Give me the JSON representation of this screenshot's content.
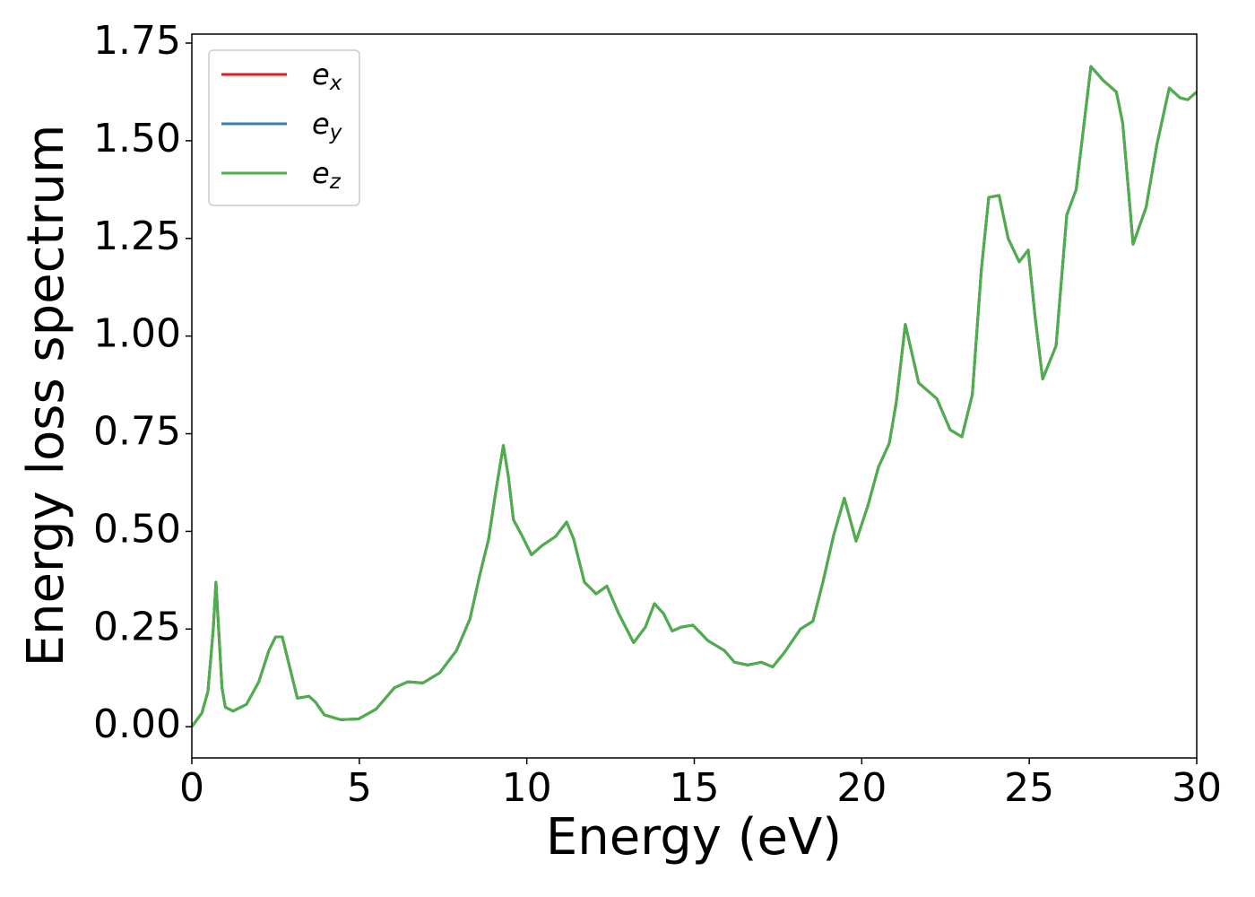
{
  "chart_data": {
    "type": "line",
    "xlabel": "Energy (eV)",
    "ylabel": "Energy loss spectrum",
    "x": [
      0,
      0.3,
      0.48,
      0.64,
      0.72,
      0.8,
      0.9,
      1.0,
      1.23,
      1.63,
      2.0,
      2.3,
      2.5,
      2.7,
      2.9,
      3.15,
      3.5,
      3.7,
      3.96,
      4.44,
      4.98,
      5.5,
      6.05,
      6.45,
      6.9,
      7.4,
      7.9,
      8.3,
      8.6,
      8.86,
      9.07,
      9.3,
      9.45,
      9.6,
      9.85,
      10.14,
      10.46,
      10.86,
      11.19,
      11.4,
      11.72,
      12.07,
      12.39,
      12.74,
      13.19,
      13.54,
      13.81,
      14.08,
      14.34,
      14.61,
      14.96,
      15.41,
      15.9,
      16.2,
      16.6,
      17.0,
      17.34,
      17.69,
      18.17,
      18.54,
      18.84,
      19.16,
      19.48,
      19.83,
      20.18,
      20.5,
      20.82,
      21.03,
      21.3,
      21.7,
      22.24,
      22.64,
      22.99,
      23.3,
      23.57,
      23.79,
      24.1,
      24.37,
      24.7,
      24.97,
      25.18,
      25.4,
      25.8,
      26.12,
      26.4,
      26.84,
      27.2,
      27.6,
      27.79,
      28.1,
      28.49,
      28.81,
      29.18,
      29.5,
      29.73,
      30.0
    ],
    "series": [
      {
        "name": "e_x",
        "color": "#e41a1c",
        "values": [
          0,
          0.035,
          0.09,
          0.25,
          0.37,
          0.25,
          0.1,
          0.05,
          0.04,
          0.057,
          0.115,
          0.195,
          0.23,
          0.23,
          0.16,
          0.073,
          0.078,
          0.062,
          0.03,
          0.018,
          0.02,
          0.045,
          0.1,
          0.115,
          0.112,
          0.138,
          0.195,
          0.275,
          0.39,
          0.48,
          0.6,
          0.72,
          0.64,
          0.53,
          0.49,
          0.44,
          0.464,
          0.487,
          0.524,
          0.48,
          0.37,
          0.34,
          0.36,
          0.29,
          0.215,
          0.255,
          0.315,
          0.29,
          0.245,
          0.255,
          0.26,
          0.22,
          0.195,
          0.165,
          0.158,
          0.165,
          0.153,
          0.19,
          0.25,
          0.27,
          0.37,
          0.49,
          0.585,
          0.475,
          0.565,
          0.665,
          0.725,
          0.83,
          1.03,
          0.88,
          0.84,
          0.76,
          0.742,
          0.85,
          1.17,
          1.355,
          1.36,
          1.25,
          1.19,
          1.22,
          1.045,
          0.89,
          0.975,
          1.31,
          1.375,
          1.69,
          1.655,
          1.625,
          1.545,
          1.235,
          1.33,
          1.49,
          1.635,
          1.61,
          1.605,
          1.625
        ]
      },
      {
        "name": "e_y",
        "color": "#377eb8",
        "values": [
          0,
          0.035,
          0.09,
          0.25,
          0.37,
          0.25,
          0.1,
          0.05,
          0.04,
          0.057,
          0.115,
          0.195,
          0.23,
          0.23,
          0.16,
          0.073,
          0.078,
          0.062,
          0.03,
          0.018,
          0.02,
          0.045,
          0.1,
          0.115,
          0.112,
          0.138,
          0.195,
          0.275,
          0.39,
          0.48,
          0.6,
          0.72,
          0.64,
          0.53,
          0.49,
          0.44,
          0.464,
          0.487,
          0.524,
          0.48,
          0.37,
          0.34,
          0.36,
          0.29,
          0.215,
          0.255,
          0.315,
          0.29,
          0.245,
          0.255,
          0.26,
          0.22,
          0.195,
          0.165,
          0.158,
          0.165,
          0.153,
          0.19,
          0.25,
          0.27,
          0.37,
          0.49,
          0.585,
          0.475,
          0.565,
          0.665,
          0.725,
          0.83,
          1.03,
          0.88,
          0.84,
          0.76,
          0.742,
          0.85,
          1.17,
          1.355,
          1.36,
          1.25,
          1.19,
          1.22,
          1.045,
          0.89,
          0.975,
          1.31,
          1.375,
          1.69,
          1.655,
          1.625,
          1.545,
          1.235,
          1.33,
          1.49,
          1.635,
          1.61,
          1.605,
          1.625
        ]
      },
      {
        "name": "e_z",
        "color": "#4daf4a",
        "values": [
          0,
          0.035,
          0.09,
          0.25,
          0.37,
          0.25,
          0.1,
          0.05,
          0.04,
          0.057,
          0.115,
          0.195,
          0.23,
          0.23,
          0.16,
          0.073,
          0.078,
          0.062,
          0.03,
          0.018,
          0.02,
          0.045,
          0.1,
          0.115,
          0.112,
          0.138,
          0.195,
          0.275,
          0.39,
          0.48,
          0.6,
          0.72,
          0.64,
          0.53,
          0.49,
          0.44,
          0.464,
          0.487,
          0.524,
          0.48,
          0.37,
          0.34,
          0.36,
          0.29,
          0.215,
          0.255,
          0.315,
          0.29,
          0.245,
          0.255,
          0.26,
          0.22,
          0.195,
          0.165,
          0.158,
          0.165,
          0.153,
          0.19,
          0.25,
          0.27,
          0.37,
          0.49,
          0.585,
          0.475,
          0.565,
          0.665,
          0.725,
          0.83,
          1.03,
          0.88,
          0.84,
          0.76,
          0.742,
          0.85,
          1.17,
          1.355,
          1.36,
          1.25,
          1.19,
          1.22,
          1.045,
          0.89,
          0.975,
          1.31,
          1.375,
          1.69,
          1.655,
          1.625,
          1.545,
          1.235,
          1.33,
          1.49,
          1.635,
          1.61,
          1.605,
          1.625
        ]
      }
    ],
    "xlim": [
      0,
      30
    ],
    "xticks": [
      0,
      5,
      10,
      15,
      20,
      25,
      30
    ],
    "ylim": [
      -0.08,
      1.773
    ],
    "yticks": [
      {
        "value": 0,
        "label": "0.00"
      },
      0.25,
      {
        "value": 0.5,
        "label": "0.50"
      },
      0.75,
      {
        "value": 1,
        "label": "1.00"
      },
      1.25,
      {
        "value": 1.5,
        "label": "1.50"
      },
      1.75
    ],
    "grid": false,
    "legend": "upper left"
  }
}
